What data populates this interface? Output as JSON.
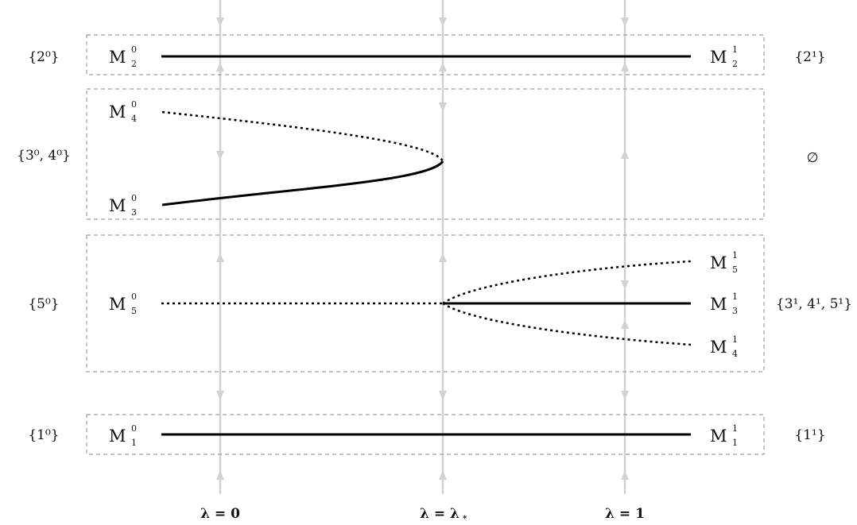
{
  "columns": [
    {
      "id": "lambda-0",
      "label": "λ = 0",
      "sub": ""
    },
    {
      "id": "lambda-star",
      "label": "λ = λ",
      "sub": "*"
    },
    {
      "id": "lambda-1",
      "label": "λ = 1",
      "sub": ""
    }
  ],
  "left_sets": [
    {
      "id": "set-2-0",
      "text": "{2⁰}"
    },
    {
      "id": "set-3-0-4-0",
      "text": "{3⁰, 4⁰}"
    },
    {
      "id": "set-5-0",
      "text": "{5⁰}"
    },
    {
      "id": "set-1-0",
      "text": "{1⁰}"
    }
  ],
  "right_sets": [
    {
      "id": "set-2-1",
      "text": "{2¹}"
    },
    {
      "id": "empty-set",
      "text": "∅"
    },
    {
      "id": "set-3-1-4-1-5-1",
      "text": "{3¹, 4¹, 5¹}"
    },
    {
      "id": "set-1-1",
      "text": "{1¹}"
    }
  ],
  "branches": [
    {
      "id": "m2-0",
      "base": "M",
      "sub": "2",
      "sup": "0"
    },
    {
      "id": "m2-1",
      "base": "M",
      "sub": "2",
      "sup": "1"
    },
    {
      "id": "m4-0",
      "base": "M",
      "sub": "4",
      "sup": "0"
    },
    {
      "id": "m3-0",
      "base": "M",
      "sub": "3",
      "sup": "0"
    },
    {
      "id": "m5-0",
      "base": "M",
      "sub": "5",
      "sup": "0"
    },
    {
      "id": "m5-1",
      "base": "M",
      "sub": "5",
      "sup": "1"
    },
    {
      "id": "m3-1",
      "base": "M",
      "sub": "3",
      "sup": "1"
    },
    {
      "id": "m4-1",
      "base": "M",
      "sub": "4",
      "sup": "1"
    },
    {
      "id": "m1-0",
      "base": "M",
      "sub": "1",
      "sup": "0"
    },
    {
      "id": "m1-1",
      "base": "M",
      "sub": "1",
      "sup": "1"
    }
  ]
}
